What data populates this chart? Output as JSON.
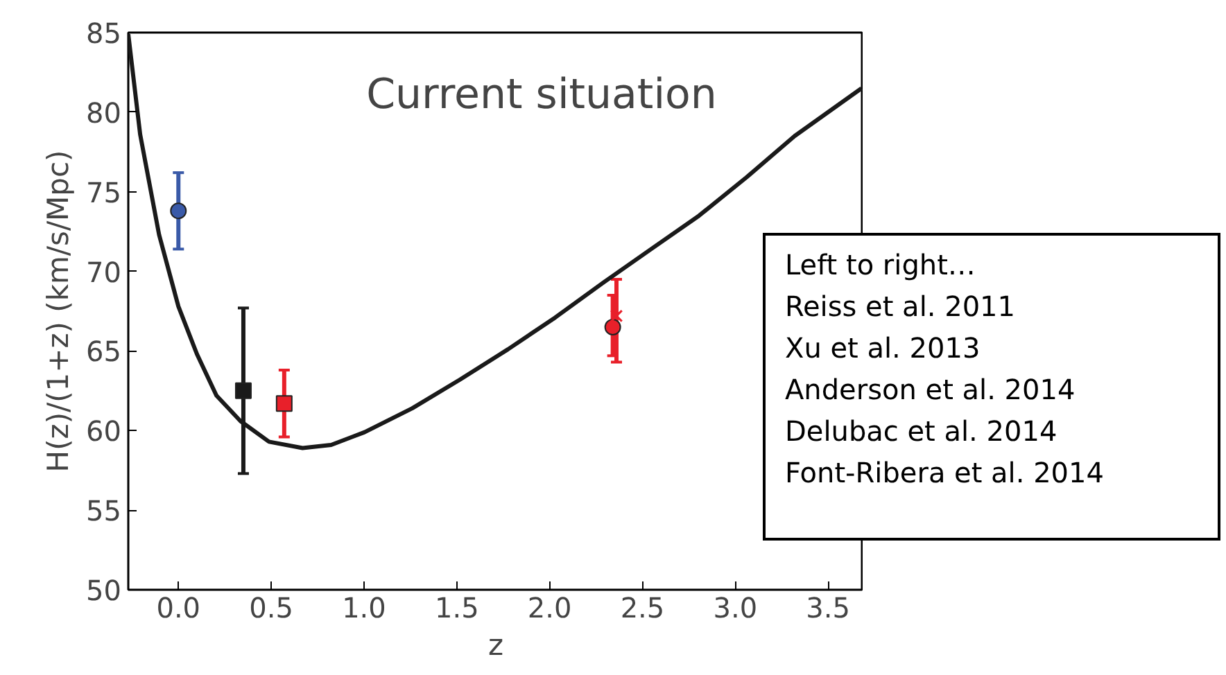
{
  "chart_data": {
    "type": "scatter",
    "title": "Current situation",
    "xlabel": "z",
    "ylabel": "H(z)/(1+z) (km/s/Mpc)",
    "xlim": [
      -0.27,
      3.69
    ],
    "ylim": [
      50,
      85
    ],
    "xticks": [
      {
        "value": 0,
        "label": "0.0"
      },
      {
        "value": 0.5,
        "label": "0.5"
      },
      {
        "value": 1,
        "label": "1.0"
      },
      {
        "value": 1.5,
        "label": "1.5"
      },
      {
        "value": 2,
        "label": "2.0"
      },
      {
        "value": 2.5,
        "label": "2.5"
      },
      {
        "value": 3,
        "label": "3.0"
      },
      {
        "value": 3.5,
        "label": "3.5"
      }
    ],
    "yticks": [
      50,
      55,
      60,
      65,
      70,
      75,
      80,
      85
    ],
    "grid": false,
    "series": [
      {
        "type": "line",
        "color": "#1a1a1a",
        "marker": "none",
        "line_style": "solid",
        "x": [
          -0.27,
          -0.206,
          -0.104,
          0.0,
          0.1,
          0.205,
          0.334,
          0.488,
          0.669,
          0.823,
          1.003,
          1.26,
          1.517,
          1.775,
          2.03,
          2.29,
          2.547,
          2.805,
          3.06,
          3.32,
          3.68
        ],
        "values": [
          84.9,
          78.6,
          72.3,
          67.8,
          64.8,
          62.2,
          60.6,
          59.3,
          58.9,
          59.1,
          59.9,
          61.4,
          63.2,
          65.1,
          67.1,
          69.3,
          71.4,
          73.5,
          75.9,
          78.5,
          81.5
        ]
      },
      {
        "color": "#3a5aa8",
        "marker": "circle",
        "x": [
          0.0
        ],
        "values": [
          73.8
        ],
        "errors": [
          2.4
        ]
      },
      {
        "color": "#1a1a1a",
        "marker": "square",
        "x": [
          0.35
        ],
        "values": [
          62.5
        ],
        "errors": [
          5.2
        ]
      },
      {
        "color": "#e8202a",
        "marker": "square",
        "x": [
          0.57
        ],
        "values": [
          61.7
        ],
        "errors": [
          2.1
        ]
      },
      {
        "color": "#e8202a",
        "marker": "circle",
        "x": [
          2.34
        ],
        "values": [
          66.5
        ],
        "errors": [
          [
            64.7,
            68.5
          ]
        ]
      },
      {
        "color": "#e8202a",
        "marker": "cross",
        "x": [
          2.36
        ],
        "values": [
          67.2
        ],
        "errors": [
          [
            64.3,
            69.5
          ]
        ]
      }
    ],
    "annotations": [
      "Left to right…",
      "Reiss et al. 2011",
      "Xu et al. 2013",
      "Anderson et al. 2014",
      "Delubac et al. 2014",
      "Font-Ribera et al. 2014"
    ]
  }
}
